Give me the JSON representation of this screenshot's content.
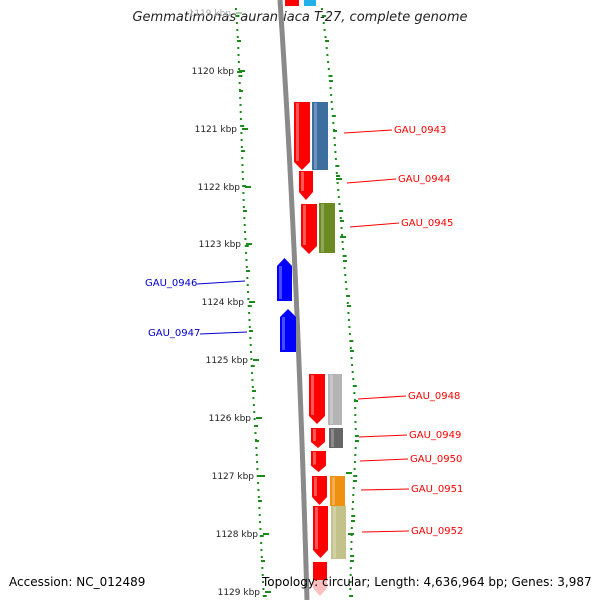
{
  "title": "Gemmatimonas aurantiaca T-27, complete genome",
  "footer": {
    "accession": "Accession: NC_012489",
    "topology": "Topology: circular; Length: 4,636,964 bp; Genes: 3,987"
  },
  "scale": {
    "ticks": [
      "1119 kbp",
      "1120 kbp",
      "1121 kbp",
      "1122 kbp",
      "1123 kbp",
      "1124 kbp",
      "1125 kbp",
      "1126 kbp",
      "1127 kbp",
      "1128 kbp",
      "1129 kbp"
    ]
  },
  "genes": [
    {
      "name": "GAU_0943",
      "strand": "forward",
      "cog_color": "#3c6fa0"
    },
    {
      "name": "GAU_0944",
      "strand": "forward",
      "cog_color": null
    },
    {
      "name": "GAU_0945",
      "strand": "forward",
      "cog_color": "#6b8a22"
    },
    {
      "name": "GAU_0946",
      "strand": "reverse",
      "cog_color": null
    },
    {
      "name": "GAU_0947",
      "strand": "reverse",
      "cog_color": null
    },
    {
      "name": "GAU_0948",
      "strand": "forward",
      "cog_color": "#b4b4b4"
    },
    {
      "name": "GAU_0949",
      "strand": "forward",
      "cog_color": "#666666"
    },
    {
      "name": "GAU_0950",
      "strand": "forward",
      "cog_color": null
    },
    {
      "name": "GAU_0951",
      "strand": "forward",
      "cog_color": "#f09010"
    },
    {
      "name": "GAU_0952",
      "strand": "forward",
      "cog_color": "#c2c28a"
    }
  ],
  "colors": {
    "forward_cds": "#ff0000",
    "reverse_cds": "#0000ff",
    "backbone": "#8a8a8a",
    "gc_dots": "#1a8a1a",
    "forward_label": "#ff0000",
    "reverse_label": "#0000cc",
    "top_partial_cog": "#22b0e8"
  }
}
